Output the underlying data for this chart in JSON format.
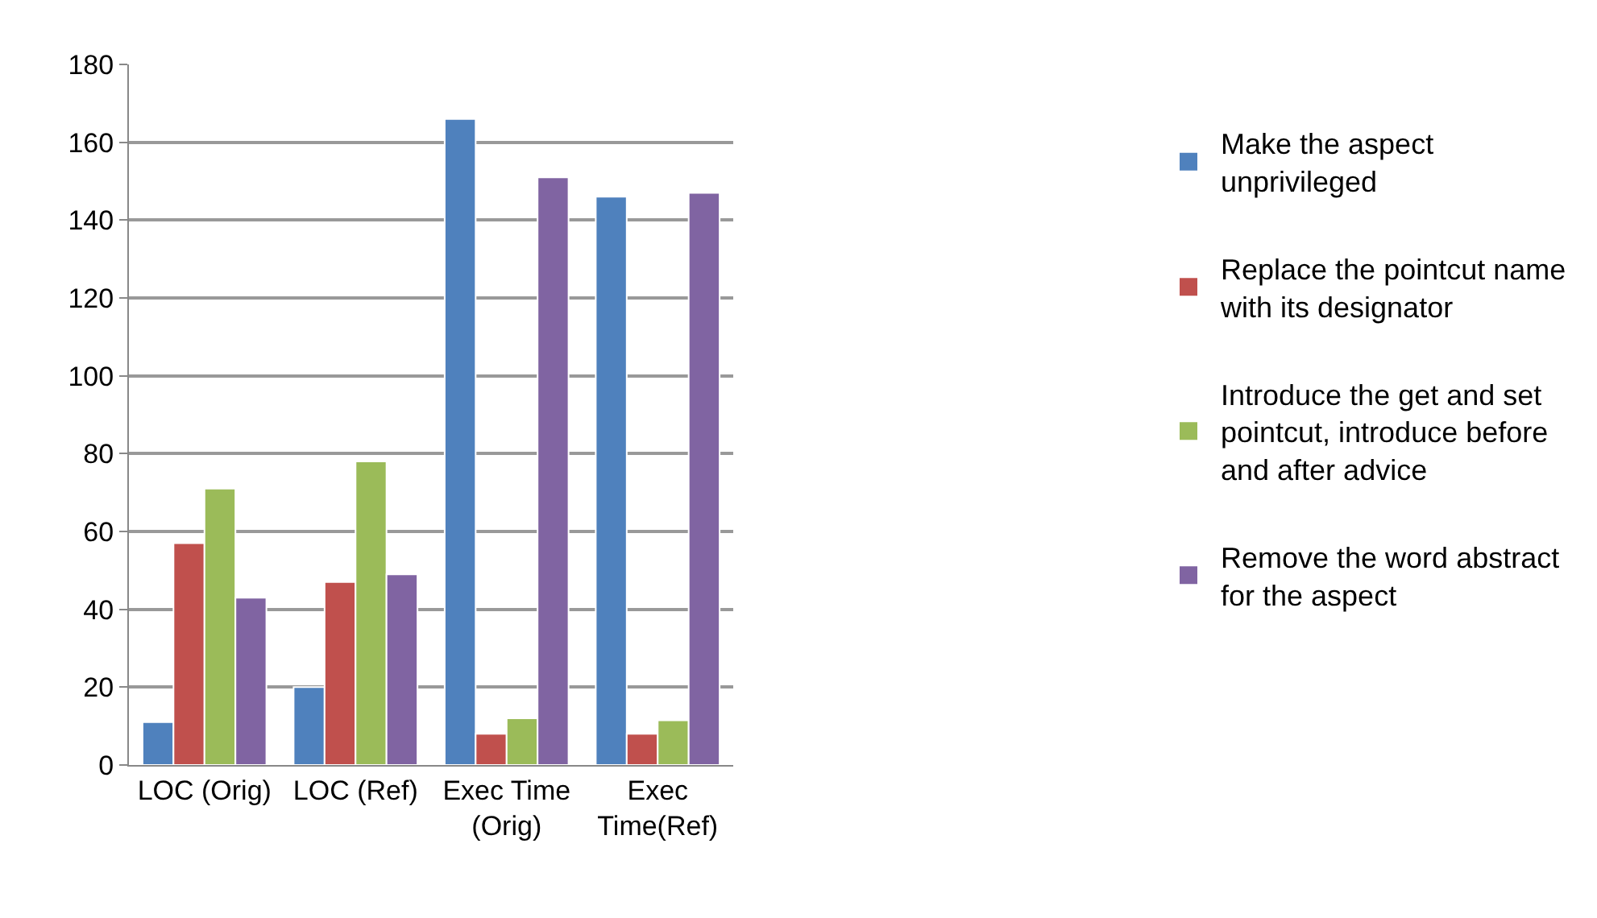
{
  "chart_data": {
    "type": "bar",
    "categories": [
      "LOC (Orig)",
      "LOC (Ref)",
      "Exec Time\n(Orig)",
      "Exec\nTime(Ref)"
    ],
    "series": [
      {
        "name": "Make the aspect\nunprivileged",
        "color": "#4f81bd",
        "values": [
          11,
          20,
          166,
          146
        ]
      },
      {
        "name": "Replace the pointcut name\nwith its designator",
        "color": "#c0504d",
        "values": [
          57,
          47,
          8,
          8
        ]
      },
      {
        "name": "Introduce the get and set\npointcut, introduce before\nand after advice",
        "color": "#9bbb59",
        "values": [
          71,
          78,
          12,
          11.5
        ]
      },
      {
        "name": "Remove the word abstract\nfor the aspect",
        "color": "#8064a2",
        "values": [
          43,
          49,
          151,
          147
        ]
      }
    ],
    "ylim": [
      0,
      180
    ],
    "yticks": [
      0,
      20,
      40,
      60,
      80,
      100,
      120,
      140,
      160,
      180
    ],
    "grid": "y",
    "legend": "right"
  }
}
